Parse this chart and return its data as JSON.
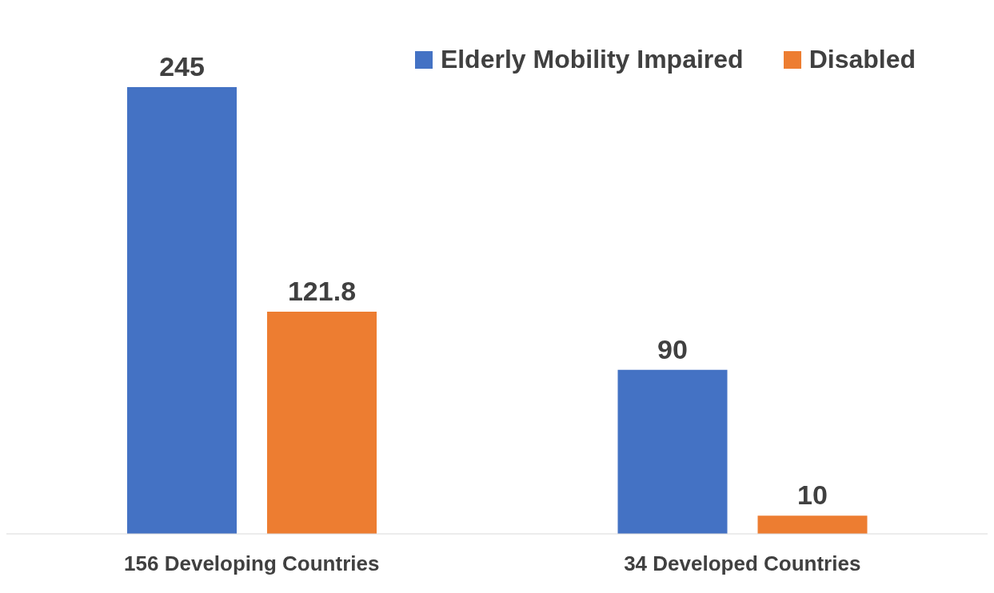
{
  "chart_data": {
    "type": "bar",
    "categories": [
      "156 Developing Countries",
      "34 Developed Countries"
    ],
    "series": [
      {
        "name": "Elderly Mobility Impaired",
        "color": "#4472c4",
        "values": [
          245,
          90
        ]
      },
      {
        "name": "Disabled",
        "color": "#ed7d31",
        "values": [
          121.8,
          10
        ]
      }
    ],
    "data_labels": true,
    "legend": "top right",
    "grid": false
  }
}
